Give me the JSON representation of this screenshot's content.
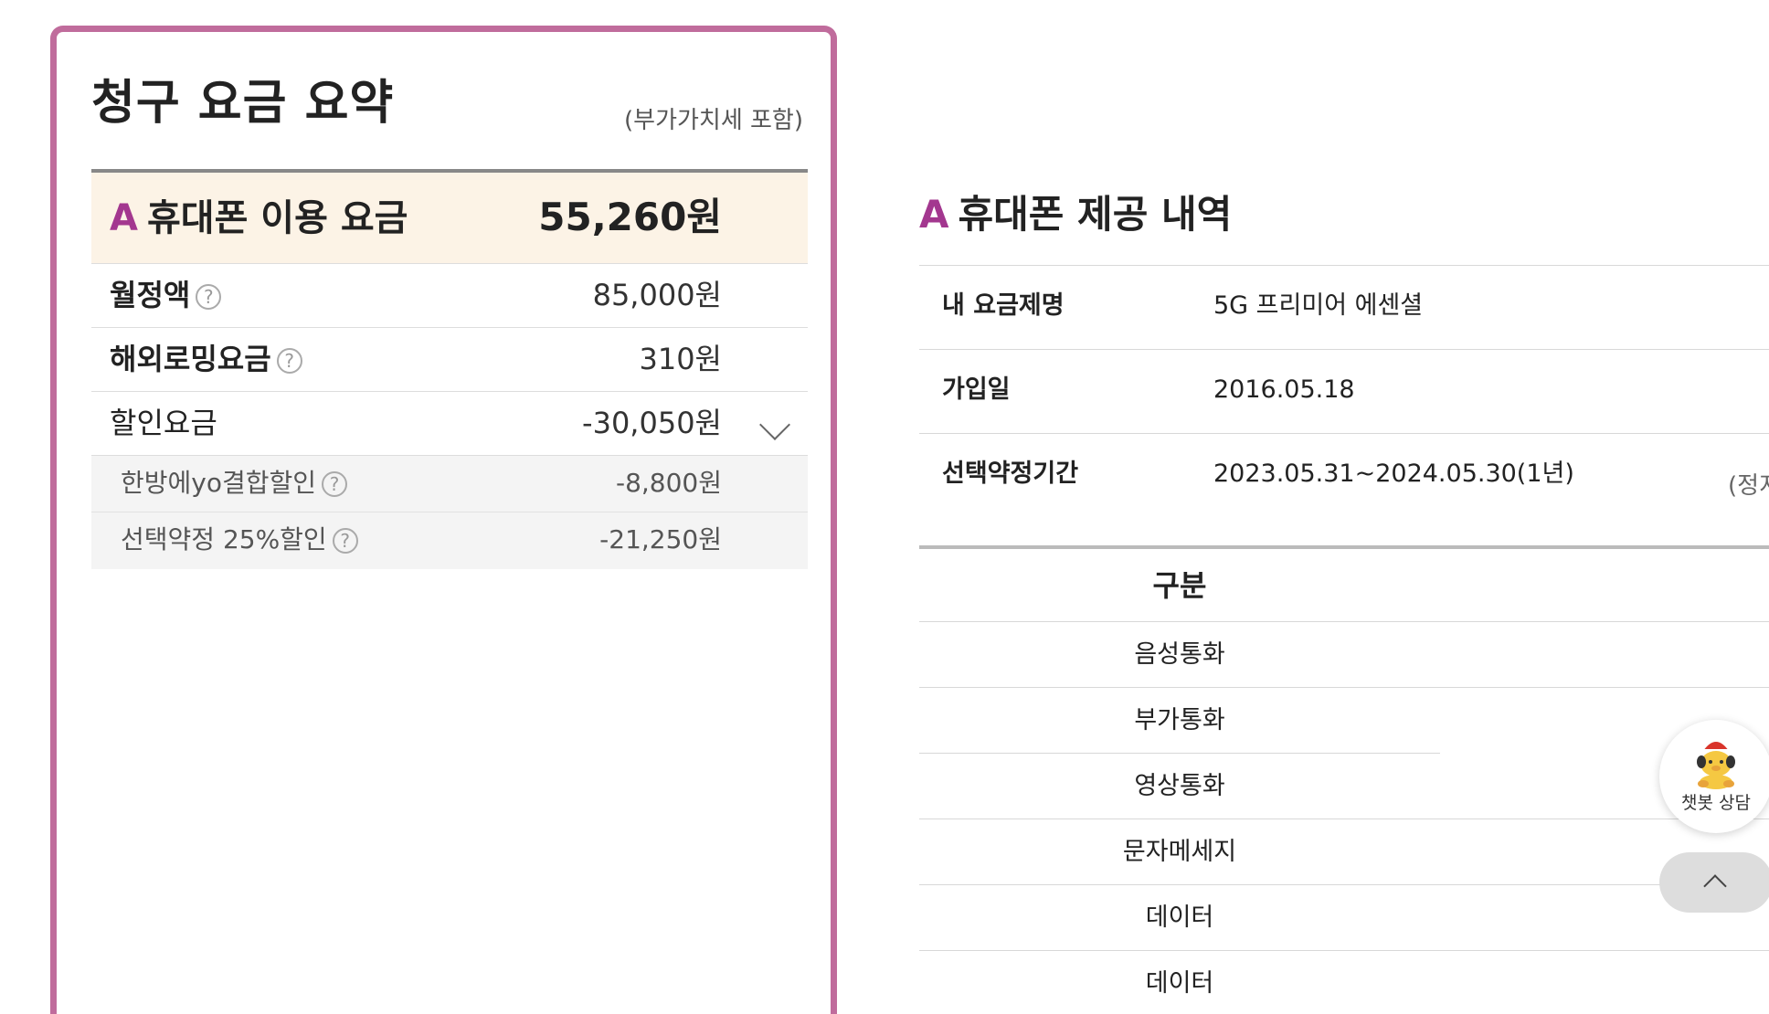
{
  "summary": {
    "title": "청구 요금 요약",
    "vat_note": "(부가가치세 포함)",
    "header": {
      "marker": "A",
      "label": "휴대폰 이용 요금",
      "amount": "55,260원"
    },
    "rows": [
      {
        "label": "월정액",
        "amount": "85,000원",
        "help": "?"
      },
      {
        "label": "해외로밍요금",
        "amount": "310원",
        "help": "?"
      },
      {
        "label": "할인요금",
        "amount": "-30,050원"
      }
    ],
    "discounts": [
      {
        "label": "한방에yo결합할인",
        "amount": "-8,800원",
        "help": "?"
      },
      {
        "label": "선택약정 25%할인",
        "amount": "-21,250원",
        "help": "?"
      }
    ]
  },
  "provision": {
    "marker": "A",
    "title": "휴대폰 제공 내역",
    "info": [
      {
        "label": "내 요금제명",
        "value": "5G 프리미어 에센셜"
      },
      {
        "label": "가입일",
        "value": "2016.05.18"
      },
      {
        "label": "선택약정기간",
        "value": "2023.05.31~2024.05.30(1년)",
        "note": "(정지"
      }
    ],
    "category_header": "구분",
    "categories": [
      "음성통화",
      "부가통화",
      "영상통화",
      "문자메세지",
      "데이터",
      "데이터"
    ]
  },
  "chatbot": {
    "label": "챗봇 상담"
  },
  "colors": {
    "card_border": "#c06c9c",
    "accent": "#a3378f",
    "header_bg": "#fcf3e6",
    "sub_row_bg": "#f4f4f4"
  }
}
